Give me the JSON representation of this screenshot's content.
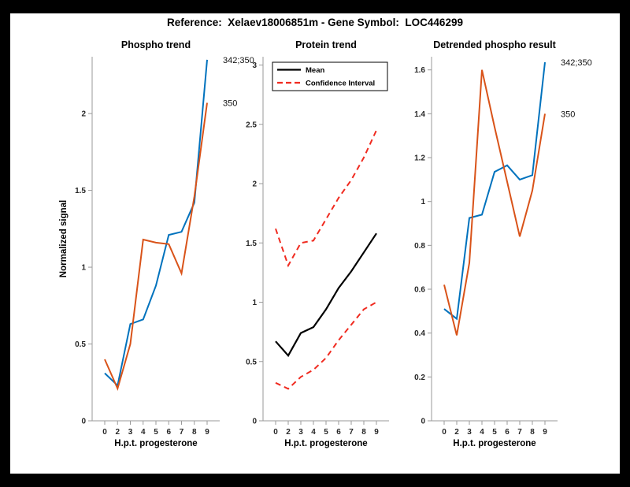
{
  "title": "Reference:  Xelaev18006851m - Gene Symbol:  LOC446299",
  "colors": {
    "background": "#000000",
    "figure_background": "#ffffff",
    "blue": "#0072BD",
    "orange": "#D95319",
    "red": "#F02B20",
    "black": "#000000",
    "axis_line": "#9a9a9a",
    "tick_text": "#262626",
    "label_text": "#000000"
  },
  "x_axis": {
    "label": "H.p.t. progesterone",
    "tick_labels": [
      "0",
      "2",
      "3",
      "4",
      "5",
      "6",
      "7",
      "8",
      "9"
    ]
  },
  "chart_data": [
    {
      "type": "line",
      "title": "Phospho trend",
      "xlabel": "H.p.t. progesterone",
      "ylabel": "Normalized signal",
      "x_categories": [
        0,
        2,
        3,
        4,
        5,
        6,
        7,
        8,
        9
      ],
      "ylim": [
        0,
        2.37
      ],
      "ytick_values": [
        0,
        0.5,
        1,
        1.5,
        2
      ],
      "ytick_labels": [
        "0",
        "0.5",
        "1",
        "1.5",
        "2"
      ],
      "grid": false,
      "series": [
        {
          "name": "342;350",
          "color": "#0072BD",
          "style": "solid",
          "width": 2,
          "values": [
            0.31,
            0.23,
            0.63,
            0.66,
            0.88,
            1.21,
            1.23,
            1.42,
            2.35
          ],
          "end_label": "342;350"
        },
        {
          "name": "350",
          "color": "#D95319",
          "style": "solid",
          "width": 2,
          "values": [
            0.4,
            0.21,
            0.5,
            1.18,
            1.16,
            1.15,
            0.96,
            1.46,
            2.07
          ],
          "end_label": "350"
        }
      ]
    },
    {
      "type": "line",
      "title": "Protein trend",
      "xlabel": "H.p.t. progesterone",
      "ylabel": "",
      "x_categories": [
        0,
        2,
        3,
        4,
        5,
        6,
        7,
        8,
        9
      ],
      "ylim": [
        0,
        3.07
      ],
      "ytick_values": [
        0,
        0.5,
        1,
        1.5,
        2,
        2.5,
        3
      ],
      "ytick_labels": [
        "0",
        "0.5",
        "1",
        "1.5",
        "2",
        "2.5",
        "3"
      ],
      "grid": false,
      "legend": {
        "position": "northwest",
        "entries": [
          {
            "label": "Mean",
            "color": "#000000",
            "style": "solid"
          },
          {
            "label": "Confidence Interval",
            "color": "#F02B20",
            "style": "dashed"
          }
        ]
      },
      "series": [
        {
          "name": "Mean",
          "color": "#000000",
          "style": "solid",
          "width": 2.2,
          "values": [
            0.67,
            0.55,
            0.74,
            0.79,
            0.94,
            1.12,
            1.26,
            1.42,
            1.58
          ]
        },
        {
          "name": "Confidence Interval (upper)",
          "color": "#F02B20",
          "style": "dashed",
          "width": 2,
          "values": [
            1.62,
            1.31,
            1.5,
            1.52,
            1.7,
            1.88,
            2.03,
            2.22,
            2.45
          ]
        },
        {
          "name": "Confidence Interval (lower)",
          "color": "#F02B20",
          "style": "dashed",
          "width": 2,
          "values": [
            0.32,
            0.27,
            0.37,
            0.43,
            0.53,
            0.68,
            0.81,
            0.94,
            1.0
          ]
        }
      ]
    },
    {
      "type": "line",
      "title": "Detrended phospho result",
      "xlabel": "H.p.t. progesterone",
      "ylabel": "",
      "x_categories": [
        0,
        2,
        3,
        4,
        5,
        6,
        7,
        8,
        9
      ],
      "ylim": [
        0,
        1.66
      ],
      "ytick_values": [
        0,
        0.2,
        0.4,
        0.6,
        0.8,
        1,
        1.2,
        1.4,
        1.6
      ],
      "ytick_labels": [
        "0",
        "0.2",
        "0.4",
        "0.6",
        "0.8",
        "1",
        "1.2",
        "1.4",
        "1.6"
      ],
      "grid": false,
      "series": [
        {
          "name": "342;350",
          "color": "#0072BD",
          "style": "solid",
          "width": 2,
          "values": [
            0.51,
            0.465,
            0.925,
            0.94,
            1.135,
            1.165,
            1.1,
            1.12,
            1.635
          ],
          "end_label": "342;350"
        },
        {
          "name": "350",
          "color": "#D95319",
          "style": "solid",
          "width": 2,
          "values": [
            0.62,
            0.39,
            0.72,
            1.6,
            1.34,
            1.09,
            0.84,
            1.05,
            1.4
          ],
          "end_label": "350"
        }
      ]
    }
  ]
}
